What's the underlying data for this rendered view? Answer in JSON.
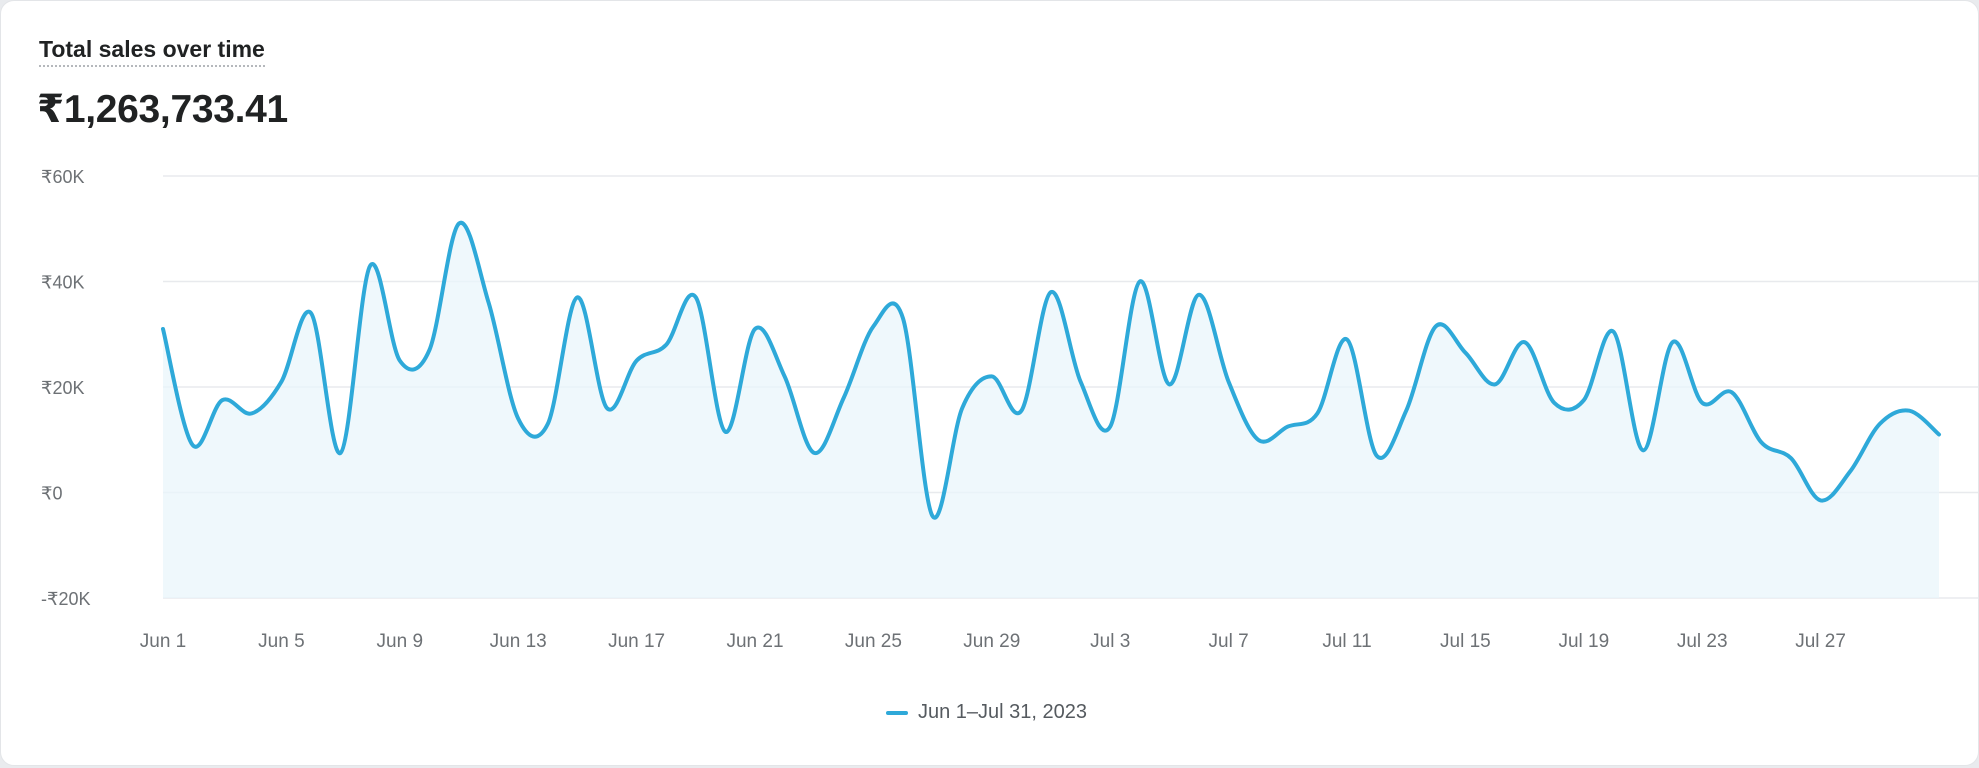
{
  "card": {
    "title": "Total sales over time",
    "total": "₹1,263,733.41"
  },
  "colors": {
    "line": "#2ea9d9",
    "fill": "#eaf6fb",
    "grid": "#e8eaed",
    "label": "#6d7175"
  },
  "chart_data": {
    "type": "area",
    "ylim": [
      -20000,
      60000
    ],
    "y_ticks": [
      60000,
      40000,
      20000,
      0,
      -20000
    ],
    "y_tick_labels": [
      "₹60K",
      "₹40K",
      "₹20K",
      "₹0",
      "-₹20K"
    ],
    "x_ticks": [
      "Jun 1",
      "Jun 5",
      "Jun 9",
      "Jun 13",
      "Jun 17",
      "Jun 21",
      "Jun 25",
      "Jun 29",
      "Jul 3",
      "Jul 7",
      "Jul 11",
      "Jul 15",
      "Jul 19",
      "Jul 23",
      "Jul 27"
    ],
    "grid": true,
    "legend_position": "bottom-center",
    "series": [
      {
        "name": "Jun 1–Jul 31, 2023",
        "values": [
          31000,
          9000,
          17500,
          15000,
          21000,
          34000,
          7500,
          43000,
          25000,
          27000,
          51000,
          36000,
          14000,
          13000,
          37000,
          16000,
          25000,
          28000,
          37000,
          11500,
          31000,
          22000,
          7500,
          18000,
          31500,
          33000,
          -4500,
          16000,
          22000,
          15500,
          38000,
          21000,
          12500,
          40000,
          20500,
          37500,
          21000,
          10000,
          12500,
          15000,
          29000,
          7000,
          15500,
          31500,
          26500,
          20500,
          28500,
          17000,
          17500,
          30500,
          8000,
          28500,
          17000,
          19000,
          9500,
          6500,
          -1500,
          4000,
          13000,
          15500,
          11000
        ]
      }
    ]
  }
}
